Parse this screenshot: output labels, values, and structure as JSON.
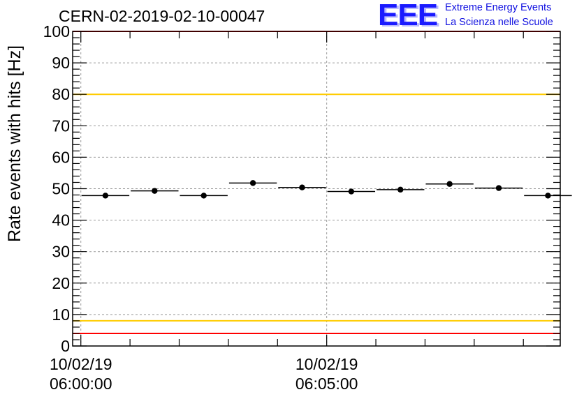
{
  "title": "CERN-02-2019-02-10-00047",
  "logo": {
    "mark": "EEE",
    "line1": "Extreme Energy Events",
    "line2": "La Scienza nelle Scuole"
  },
  "chart_data": {
    "type": "scatter",
    "title": "CERN-02-2019-02-10-00047",
    "ylabel": "Rate events with hits [Hz]",
    "xlabel": "",
    "ylim": [
      0,
      100
    ],
    "yticks": [
      0,
      10,
      20,
      30,
      40,
      50,
      60,
      70,
      80,
      90,
      100
    ],
    "xlim": [
      "10/02/19 05:59:50",
      "10/02/19 06:09:45"
    ],
    "xticks": [
      {
        "value": "10/02/19 06:00:00",
        "date": "10/02/19",
        "time": "06:00:00"
      },
      {
        "value": "10/02/19 06:05:00",
        "date": "10/02/19",
        "time": "06:05:00"
      }
    ],
    "grid": true,
    "series": [
      {
        "points": [
          {
            "x_start": "06:00:00",
            "x_end": "06:01:00",
            "y": 47.8
          },
          {
            "x_start": "06:01:00",
            "x_end": "06:02:00",
            "y": 49.3
          },
          {
            "x_start": "06:02:00",
            "x_end": "06:03:00",
            "y": 47.8
          },
          {
            "x_start": "06:03:00",
            "x_end": "06:04:00",
            "y": 51.8
          },
          {
            "x_start": "06:04:00",
            "x_end": "06:05:00",
            "y": 50.4
          },
          {
            "x_start": "06:05:00",
            "x_end": "06:06:00",
            "y": 49.1
          },
          {
            "x_start": "06:06:00",
            "x_end": "06:07:00",
            "y": 49.7
          },
          {
            "x_start": "06:07:00",
            "x_end": "06:08:00",
            "y": 51.5
          },
          {
            "x_start": "06:08:00",
            "x_end": "06:09:00",
            "y": 50.2
          },
          {
            "x_start": "06:09:00",
            "x_end": "06:10:00",
            "y": 47.8
          }
        ],
        "color": "#000000"
      }
    ],
    "reference_lines": [
      {
        "y": 100,
        "color": "#ff0000"
      },
      {
        "y": 80,
        "color": "#ffcc00"
      },
      {
        "y": 8,
        "color": "#ffcc00"
      },
      {
        "y": 4,
        "color": "#ff0000"
      }
    ]
  }
}
